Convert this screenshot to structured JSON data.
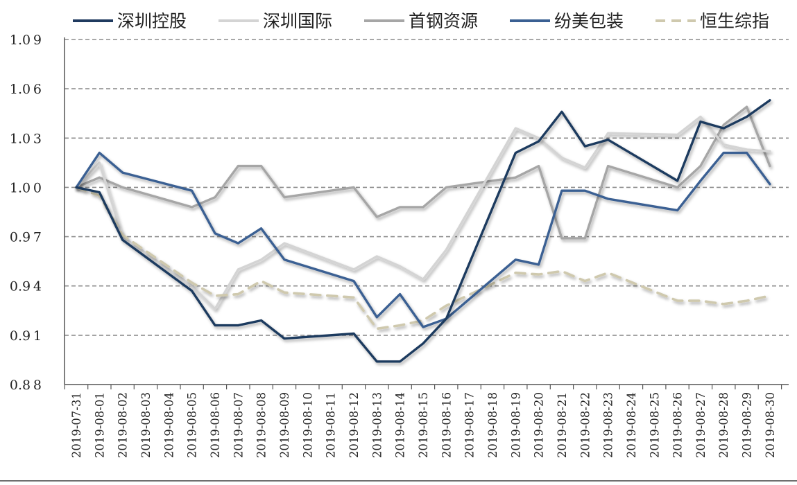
{
  "chart_data": {
    "type": "line",
    "title": "",
    "xlabel": "",
    "ylabel": "",
    "ylim": [
      0.88,
      1.09
    ],
    "yticks": [
      "0.88",
      "0.91",
      "0.94",
      "0.97",
      "1.00",
      "1.03",
      "1.06",
      "1.09"
    ],
    "grid": "horizontal dashed",
    "legend_position": "top",
    "x": [
      "2019-07-31",
      "2019-08-01",
      "2019-08-02",
      "2019-08-03",
      "2019-08-04",
      "2019-08-05",
      "2019-08-06",
      "2019-08-07",
      "2019-08-08",
      "2019-08-09",
      "2019-08-10",
      "2019-08-11",
      "2019-08-12",
      "2019-08-13",
      "2019-08-14",
      "2019-08-15",
      "2019-08-16",
      "2019-08-17",
      "2019-08-18",
      "2019-08-19",
      "2019-08-20",
      "2019-08-21",
      "2019-08-22",
      "2019-08-23",
      "2019-08-24",
      "2019-08-25",
      "2019-08-26",
      "2019-08-27",
      "2019-08-28",
      "2019-08-29",
      "2019-08-30"
    ],
    "series": [
      {
        "name": "深圳控股",
        "color": "#1f3a5f",
        "style": "solid",
        "points": [
          [
            0,
            1.0
          ],
          [
            1,
            0.997
          ],
          [
            2,
            0.968
          ],
          [
            5,
            0.937
          ],
          [
            6,
            0.916
          ],
          [
            7,
            0.916
          ],
          [
            8,
            0.919
          ],
          [
            9,
            0.908
          ],
          [
            12,
            0.911
          ],
          [
            13,
            0.894
          ],
          [
            14,
            0.894
          ],
          [
            15,
            0.905
          ],
          [
            16,
            0.92
          ],
          [
            19,
            1.021
          ],
          [
            20,
            1.028
          ],
          [
            21,
            1.046
          ],
          [
            22,
            1.025
          ],
          [
            23,
            1.029
          ],
          [
            26,
            1.004
          ],
          [
            27,
            1.04
          ],
          [
            28,
            1.036
          ],
          [
            29,
            1.043
          ],
          [
            30,
            1.053
          ]
        ]
      },
      {
        "name": "深圳国际",
        "color": "#d4d4d4",
        "style": "solid",
        "points": [
          [
            0,
            1.0
          ],
          [
            1,
            1.015
          ],
          [
            2,
            0.97
          ],
          [
            5,
            0.94
          ],
          [
            6,
            0.926
          ],
          [
            7,
            0.95
          ],
          [
            8,
            0.956
          ],
          [
            9,
            0.966
          ],
          [
            12,
            0.95
          ],
          [
            13,
            0.958
          ],
          [
            14,
            0.952
          ],
          [
            15,
            0.944
          ],
          [
            16,
            0.962
          ],
          [
            19,
            1.036
          ],
          [
            20,
            1.03
          ],
          [
            21,
            1.018
          ],
          [
            22,
            1.012
          ],
          [
            23,
            1.033
          ],
          [
            26,
            1.032
          ],
          [
            27,
            1.043
          ],
          [
            28,
            1.026
          ],
          [
            29,
            1.023
          ],
          [
            30,
            1.022
          ]
        ]
      },
      {
        "name": "首钢资源",
        "color": "#a6a6a6",
        "style": "solid",
        "points": [
          [
            0,
            1.0
          ],
          [
            1,
            1.006
          ],
          [
            2,
            1.0
          ],
          [
            5,
            0.988
          ],
          [
            6,
            0.994
          ],
          [
            7,
            1.013
          ],
          [
            8,
            1.013
          ],
          [
            9,
            0.994
          ],
          [
            12,
            1.0
          ],
          [
            13,
            0.982
          ],
          [
            14,
            0.988
          ],
          [
            15,
            0.988
          ],
          [
            16,
            1.0
          ],
          [
            19,
            1.006
          ],
          [
            20,
            1.013
          ],
          [
            21,
            0.969
          ],
          [
            22,
            0.969
          ],
          [
            23,
            1.013
          ],
          [
            26,
            1.0
          ],
          [
            27,
            1.013
          ],
          [
            28,
            1.038
          ],
          [
            29,
            1.049
          ],
          [
            30,
            1.013
          ]
        ]
      },
      {
        "name": "纷美包装",
        "color": "#3a6093",
        "style": "solid",
        "points": [
          [
            0,
            1.0
          ],
          [
            1,
            1.021
          ],
          [
            2,
            1.009
          ],
          [
            5,
            0.998
          ],
          [
            6,
            0.972
          ],
          [
            7,
            0.966
          ],
          [
            8,
            0.975
          ],
          [
            9,
            0.956
          ],
          [
            12,
            0.943
          ],
          [
            13,
            0.921
          ],
          [
            14,
            0.935
          ],
          [
            15,
            0.915
          ],
          [
            16,
            0.92
          ],
          [
            19,
            0.956
          ],
          [
            20,
            0.953
          ],
          [
            21,
            0.998
          ],
          [
            22,
            0.998
          ],
          [
            23,
            0.993
          ],
          [
            26,
            0.986
          ],
          [
            27,
            1.004
          ],
          [
            28,
            1.021
          ],
          [
            29,
            1.021
          ],
          [
            30,
            1.002
          ]
        ]
      },
      {
        "name": "恒生综指",
        "color": "#cfc9ae",
        "style": "dashed",
        "points": [
          [
            0,
            1.0
          ],
          [
            1,
            0.995
          ],
          [
            2,
            0.971
          ],
          [
            5,
            0.942
          ],
          [
            6,
            0.934
          ],
          [
            7,
            0.935
          ],
          [
            8,
            0.943
          ],
          [
            9,
            0.936
          ],
          [
            12,
            0.933
          ],
          [
            13,
            0.914
          ],
          [
            14,
            0.916
          ],
          [
            15,
            0.919
          ],
          [
            16,
            0.928
          ],
          [
            19,
            0.948
          ],
          [
            20,
            0.947
          ],
          [
            21,
            0.949
          ],
          [
            22,
            0.943
          ],
          [
            23,
            0.948
          ],
          [
            26,
            0.931
          ],
          [
            27,
            0.931
          ],
          [
            28,
            0.929
          ],
          [
            29,
            0.931
          ],
          [
            30,
            0.934
          ]
        ]
      }
    ]
  }
}
